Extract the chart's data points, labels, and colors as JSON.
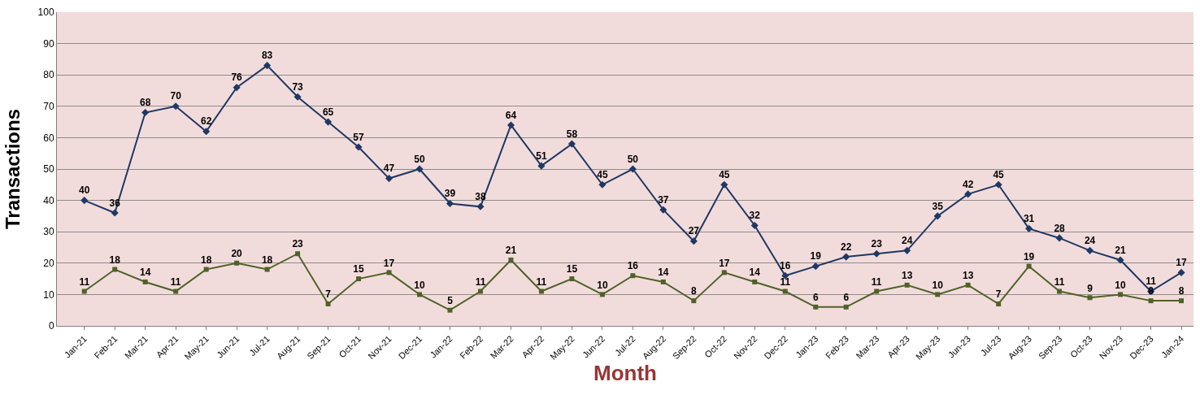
{
  "chart_data": {
    "type": "line",
    "xlabel": "Month",
    "ylabel": "Transactions",
    "categories": [
      "Jan-21",
      "Feb-21",
      "Mar-21",
      "Apr-21",
      "May-21",
      "Jun-21",
      "Jul-21",
      "Aug-21",
      "Sep-21",
      "Oct-21",
      "Nov-21",
      "Dec-21",
      "Jan-22",
      "Feb-22",
      "Mar-22",
      "Apr-22",
      "May-22",
      "Jun-22",
      "Jul-22",
      "Aug-22",
      "Sep-22",
      "Oct-22",
      "Nov-22",
      "Dec-22",
      "Jan-23",
      "Feb-23",
      "Mar-23",
      "Apr-23",
      "May-23",
      "Jun-23",
      "Jul-23",
      "Aug-23",
      "Sep-23",
      "Oct-23",
      "Nov-23",
      "Dec-23",
      "Jan-24"
    ],
    "series": [
      {
        "color": "#1f3864",
        "marker": "diamond",
        "values": [
          40,
          36,
          68,
          70,
          62,
          76,
          83,
          73,
          65,
          57,
          47,
          50,
          39,
          38,
          64,
          51,
          58,
          45,
          50,
          37,
          27,
          45,
          32,
          16,
          19,
          22,
          23,
          24,
          35,
          42,
          45,
          31,
          28,
          24,
          21,
          11,
          17
        ]
      },
      {
        "color": "#4f6228",
        "marker": "square",
        "values": [
          11,
          18,
          14,
          11,
          18,
          20,
          18,
          23,
          7,
          15,
          17,
          10,
          5,
          11,
          21,
          11,
          15,
          10,
          16,
          14,
          8,
          17,
          14,
          11,
          6,
          6,
          11,
          13,
          10,
          13,
          7,
          19,
          11,
          9,
          10,
          8,
          8
        ]
      }
    ],
    "ylim": [
      0,
      100
    ],
    "yticks": [
      0,
      10,
      20,
      30,
      40,
      50,
      60,
      70,
      80,
      90,
      100
    ],
    "grid": "y",
    "data_labels": true,
    "line_style": "solid"
  }
}
